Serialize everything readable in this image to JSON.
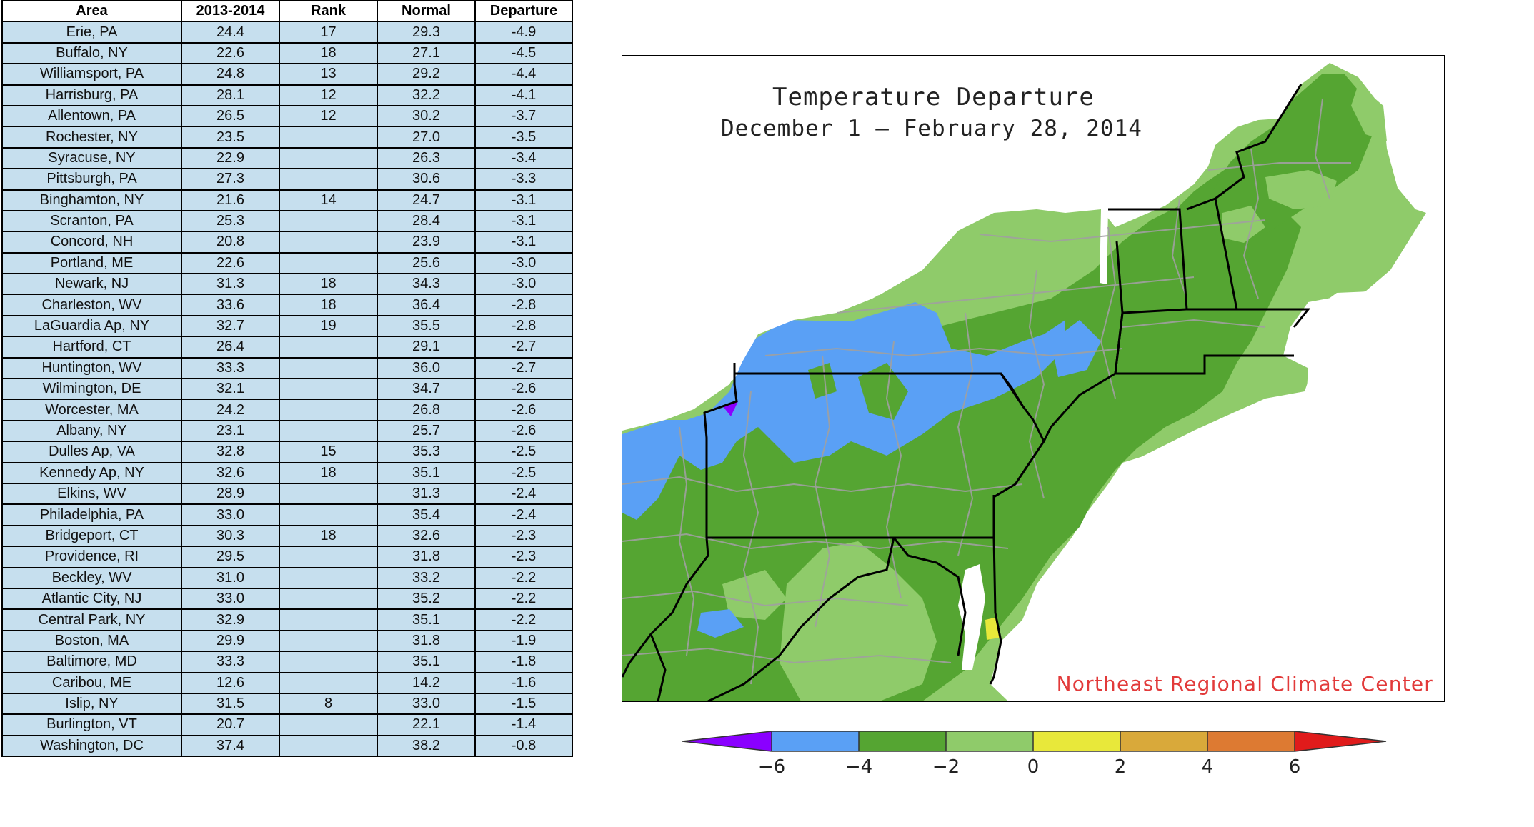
{
  "table": {
    "headers": [
      "Area",
      "2013-2014",
      "Rank",
      "Normal",
      "Departure"
    ],
    "rows": [
      [
        "Erie, PA",
        "24.4",
        "17",
        "29.3",
        "-4.9"
      ],
      [
        "Buffalo, NY",
        "22.6",
        "18",
        "27.1",
        "-4.5"
      ],
      [
        "Williamsport, PA",
        "24.8",
        "13",
        "29.2",
        "-4.4"
      ],
      [
        "Harrisburg, PA",
        "28.1",
        "12",
        "32.2",
        "-4.1"
      ],
      [
        "Allentown, PA",
        "26.5",
        "12",
        "30.2",
        "-3.7"
      ],
      [
        "Rochester, NY",
        "23.5",
        "",
        "27.0",
        "-3.5"
      ],
      [
        "Syracuse, NY",
        "22.9",
        "",
        "26.3",
        "-3.4"
      ],
      [
        "Pittsburgh, PA",
        "27.3",
        "",
        "30.6",
        "-3.3"
      ],
      [
        "Binghamton, NY",
        "21.6",
        "14",
        "24.7",
        "-3.1"
      ],
      [
        "Scranton, PA",
        "25.3",
        "",
        "28.4",
        "-3.1"
      ],
      [
        "Concord, NH",
        "20.8",
        "",
        "23.9",
        "-3.1"
      ],
      [
        "Portland, ME",
        "22.6",
        "",
        "25.6",
        "-3.0"
      ],
      [
        "Newark, NJ",
        "31.3",
        "18",
        "34.3",
        "-3.0"
      ],
      [
        "Charleston, WV",
        "33.6",
        "18",
        "36.4",
        "-2.8"
      ],
      [
        "LaGuardia Ap, NY",
        "32.7",
        "19",
        "35.5",
        "-2.8"
      ],
      [
        "Hartford, CT",
        "26.4",
        "",
        "29.1",
        "-2.7"
      ],
      [
        "Huntington, WV",
        "33.3",
        "",
        "36.0",
        "-2.7"
      ],
      [
        "Wilmington, DE",
        "32.1",
        "",
        "34.7",
        "-2.6"
      ],
      [
        "Worcester, MA",
        "24.2",
        "",
        "26.8",
        "-2.6"
      ],
      [
        "Albany, NY",
        "23.1",
        "",
        "25.7",
        "-2.6"
      ],
      [
        "Dulles Ap, VA",
        "32.8",
        "15",
        "35.3",
        "-2.5"
      ],
      [
        "Kennedy Ap, NY",
        "32.6",
        "18",
        "35.1",
        "-2.5"
      ],
      [
        "Elkins, WV",
        "28.9",
        "",
        "31.3",
        "-2.4"
      ],
      [
        "Philadelphia, PA",
        "33.0",
        "",
        "35.4",
        "-2.4"
      ],
      [
        "Bridgeport, CT",
        "30.3",
        "18",
        "32.6",
        "-2.3"
      ],
      [
        "Providence, RI",
        "29.5",
        "",
        "31.8",
        "-2.3"
      ],
      [
        "Beckley, WV",
        "31.0",
        "",
        "33.2",
        "-2.2"
      ],
      [
        "Atlantic City, NJ",
        "33.0",
        "",
        "35.2",
        "-2.2"
      ],
      [
        "Central Park, NY",
        "32.9",
        "",
        "35.1",
        "-2.2"
      ],
      [
        "Boston, MA",
        "29.9",
        "",
        "31.8",
        "-1.9"
      ],
      [
        "Baltimore, MD",
        "33.3",
        "",
        "35.1",
        "-1.8"
      ],
      [
        "Caribou, ME",
        "12.6",
        "",
        "14.2",
        "-1.6"
      ],
      [
        "Islip, NY",
        "31.5",
        "8",
        "33.0",
        "-1.5"
      ],
      [
        "Burlington, VT",
        "20.7",
        "",
        "22.1",
        "-1.4"
      ],
      [
        "Washington, DC",
        "37.4",
        "",
        "38.2",
        "-0.8"
      ]
    ]
  },
  "map": {
    "title_line1": "Temperature Departure",
    "title_line2": "December 1 — February 28, 2014",
    "credit": "Northeast Regional Climate Center",
    "colors": {
      "below_minus6": "#8a00ff",
      "minus6_to_minus4": "#5aa0f5",
      "minus4_to_minus2": "#55a532",
      "minus2_to_0": "#8fcb6a",
      "zero_to_2": "#e8e83a",
      "two_to_4": "#d9a93a",
      "four_to_6": "#dd7a32",
      "above_6": "#e01b1b",
      "county_lines": "#a0a0a0",
      "state_lines": "#000000",
      "water": "#ffffff"
    }
  },
  "legend": {
    "tick_labels": [
      "−6",
      "−4",
      "−2",
      "0",
      "2",
      "4",
      "6"
    ],
    "bin_colors": [
      "#8a00ff",
      "#5aa0f5",
      "#55a532",
      "#8fcb6a",
      "#e8e83a",
      "#d9a93a",
      "#dd7a32",
      "#e01b1b"
    ]
  }
}
